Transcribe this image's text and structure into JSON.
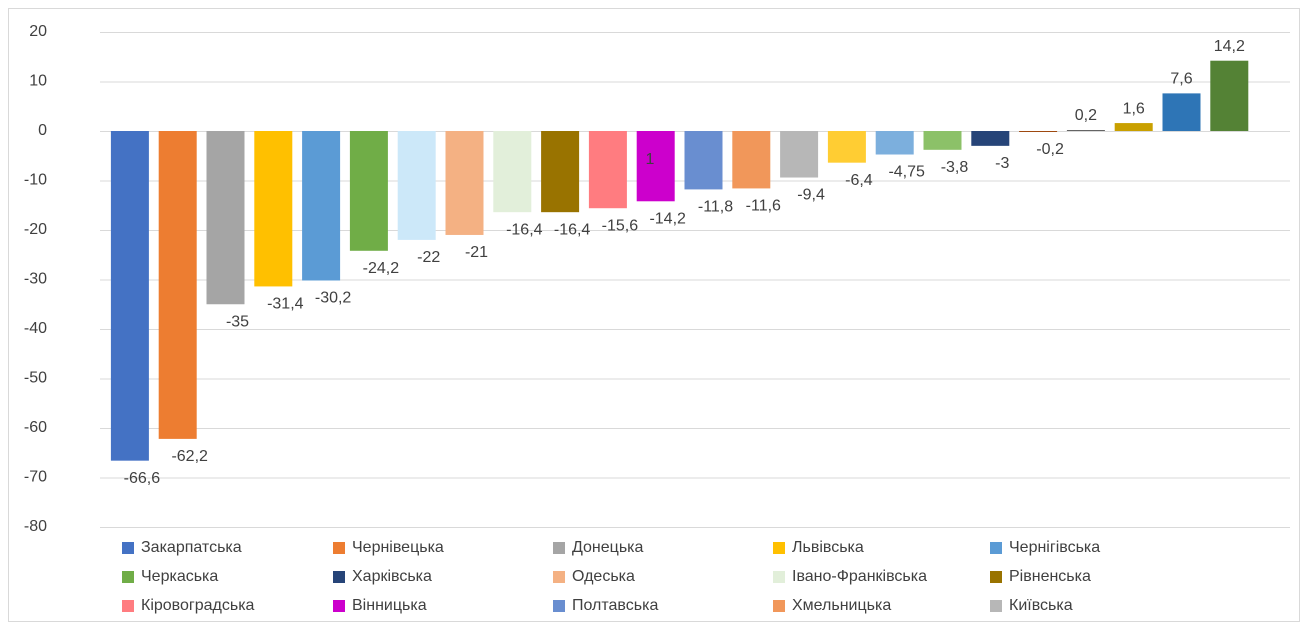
{
  "chart_data": {
    "type": "bar",
    "values": [
      -66.6,
      -62.2,
      -35,
      -31.4,
      -30.2,
      -24.2,
      -22,
      -21,
      -16.4,
      -16.4,
      -15.6,
      -14.2,
      -11.8,
      -11.6,
      -9.4,
      -6.4,
      -4.75,
      -3.8,
      -3,
      -0.2,
      0.2,
      1.6,
      7.6,
      14.2
    ],
    "value_labels": [
      "-66,6",
      "-62,2",
      "-35",
      "-31,4",
      "-30,2",
      "-24,2",
      "-22",
      "-21",
      "-16,4",
      "-16,4",
      "-15,6",
      "-14,2",
      "-11,8",
      "-11,6",
      "-9,4",
      "-6,4",
      "-4,75",
      "-3,8",
      "-3",
      "-0,2",
      "0,2",
      "1,6",
      "7,6",
      "14,2"
    ],
    "colors": [
      "#4472c4",
      "#ed7d31",
      "#a5a5a5",
      "#ffc000",
      "#5b9bd5",
      "#70ad47",
      "#cce8f9",
      "#f4b183",
      "#e2efda",
      "#997300",
      "#ff7c80",
      "#cc00cc",
      "#698ed0",
      "#f1975a",
      "#b7b7b7",
      "#ffcd33",
      "#7cafdd",
      "#8cc168",
      "#264478",
      "#9e480e",
      "#636363",
      "#c9a000",
      "#2e75b6",
      "#548235"
    ],
    "ylim": [
      -80,
      20
    ],
    "yticks": [
      -80,
      -70,
      -60,
      -50,
      -40,
      -30,
      -20,
      -10,
      0,
      10,
      20
    ],
    "grid": true,
    "annotations": [
      "1"
    ],
    "legend": [
      {
        "name": "Закарпатська",
        "color": "#4472c4"
      },
      {
        "name": "Чернівецька",
        "color": "#ed7d31"
      },
      {
        "name": "Донецька",
        "color": "#a5a5a5"
      },
      {
        "name": "Львівська",
        "color": "#ffc000"
      },
      {
        "name": "Чернігівська",
        "color": "#5b9bd5"
      },
      {
        "name": "Черкаська",
        "color": "#70ad47"
      },
      {
        "name": "Харківська",
        "color": "#264478"
      },
      {
        "name": "Одеська",
        "color": "#f4b183"
      },
      {
        "name": "Івано-Франківська",
        "color": "#e2efda"
      },
      {
        "name": "Рівненська",
        "color": "#997300"
      },
      {
        "name": "Кіровоградська",
        "color": "#ff7c80"
      },
      {
        "name": "Вінницька",
        "color": "#cc00cc"
      },
      {
        "name": "Полтавська",
        "color": "#698ed0"
      },
      {
        "name": "Хмельницька",
        "color": "#f1975a"
      },
      {
        "name": "Київська",
        "color": "#b7b7b7"
      }
    ]
  }
}
